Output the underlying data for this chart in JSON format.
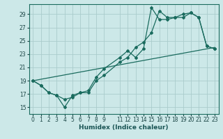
{
  "xlabel": "Humidex (Indice chaleur)",
  "background_color": "#cce8e8",
  "grid_color": "#aacccc",
  "line_color": "#1a6b5e",
  "xlim": [
    -0.5,
    23.5
  ],
  "ylim": [
    14.0,
    30.5
  ],
  "yticks": [
    15,
    17,
    19,
    21,
    23,
    25,
    27,
    29
  ],
  "xticks": [
    0,
    1,
    2,
    3,
    4,
    5,
    6,
    7,
    8,
    9,
    11,
    12,
    13,
    14,
    15,
    16,
    17,
    18,
    19,
    20,
    21,
    22,
    23
  ],
  "line1_x": [
    0,
    1,
    2,
    3,
    4,
    5,
    6,
    7,
    8,
    9,
    11,
    12,
    13,
    14,
    15,
    16,
    17,
    18,
    19,
    20,
    21,
    22,
    23
  ],
  "line1_y": [
    19.0,
    18.3,
    17.2,
    16.8,
    15.0,
    16.8,
    17.2,
    17.2,
    19.0,
    19.8,
    21.8,
    22.5,
    24.0,
    24.8,
    26.2,
    29.5,
    28.5,
    28.5,
    29.0,
    29.2,
    28.5,
    24.2,
    23.8
  ],
  "line2_x": [
    0,
    1,
    2,
    3,
    4,
    5,
    6,
    7,
    8,
    9,
    11,
    12,
    13,
    14,
    15,
    16,
    17,
    18,
    19,
    20,
    21,
    22,
    23
  ],
  "line2_y": [
    19.0,
    18.3,
    17.2,
    16.8,
    16.2,
    16.5,
    17.2,
    17.5,
    19.5,
    20.8,
    22.5,
    23.5,
    22.5,
    23.8,
    30.0,
    28.2,
    28.2,
    28.5,
    28.5,
    29.2,
    28.5,
    24.2,
    23.8
  ],
  "line3_x": [
    0,
    23
  ],
  "line3_y": [
    19.0,
    24.0
  ]
}
